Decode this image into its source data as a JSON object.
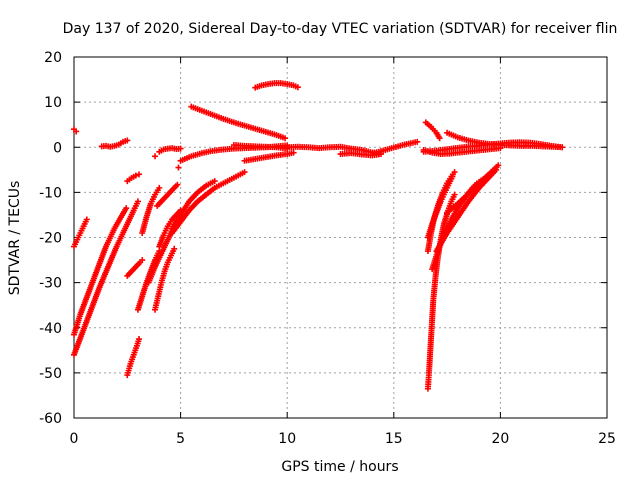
{
  "chart_data": {
    "type": "scatter",
    "title": "Day 137 of 2020, Sidereal Day-to-day VTEC variation (SDTVAR) for receiver flin",
    "xlabel": "GPS time / hours",
    "ylabel": "SDTVAR / TECUs",
    "xlim": [
      0,
      25
    ],
    "ylim": [
      -60,
      20
    ],
    "xticks": [
      0,
      5,
      10,
      15,
      20,
      25
    ],
    "yticks": [
      -60,
      -50,
      -40,
      -30,
      -20,
      -10,
      0,
      10,
      20
    ],
    "grid": true,
    "marker": "+",
    "color": "#ff0000",
    "legend": "none",
    "tracks": [
      {
        "x": [
          0.0,
          0.1
        ],
        "y": [
          4.0,
          3.5
        ]
      },
      {
        "x": [
          0.0,
          0.15,
          0.3,
          0.45,
          0.6
        ],
        "y": [
          -22,
          -20.5,
          -19,
          -17.5,
          -16
        ]
      },
      {
        "x": [
          0.0,
          0.3,
          0.7,
          1.1,
          1.5,
          1.9,
          2.2,
          2.45
        ],
        "y": [
          -41.5,
          -37,
          -32,
          -27,
          -22,
          -18,
          -15.5,
          -13.5
        ]
      },
      {
        "x": [
          0.0,
          0.4,
          0.8,
          1.2,
          1.6,
          2.0,
          2.4,
          2.8,
          3.0
        ],
        "y": [
          -46,
          -41,
          -36,
          -31,
          -26.5,
          -22,
          -18,
          -14,
          -12
        ]
      },
      {
        "x": [
          1.3,
          1.5,
          1.7,
          1.9,
          2.1,
          2.3,
          2.5
        ],
        "y": [
          0.2,
          0.3,
          0.1,
          0.3,
          0.6,
          1.2,
          1.5
        ]
      },
      {
        "x": [
          2.5,
          2.7,
          2.9,
          3.05
        ],
        "y": [
          -7.5,
          -6.8,
          -6.3,
          -6
        ]
      },
      {
        "x": [
          2.5,
          2.7,
          2.9,
          3.1,
          3.2
        ],
        "y": [
          -28.5,
          -27.5,
          -26.5,
          -25.5,
          -25
        ]
      },
      {
        "x": [
          2.5,
          2.65,
          2.8,
          2.95,
          3.05
        ],
        "y": [
          -50.5,
          -48,
          -46,
          -44,
          -42.5
        ]
      },
      {
        "x": [
          3.0,
          3.2,
          3.4,
          3.6,
          3.8,
          4.0
        ],
        "y": [
          -36,
          -33,
          -30,
          -27.5,
          -25,
          -23
        ]
      },
      {
        "x": [
          3.2,
          3.4,
          3.6,
          3.8,
          4.0
        ],
        "y": [
          -19,
          -15.5,
          -12.5,
          -10.5,
          -9
        ]
      },
      {
        "x": [
          3.5,
          3.8,
          4.1,
          4.4,
          4.7,
          5.0
        ],
        "y": [
          -30,
          -26.5,
          -23.5,
          -20.5,
          -17.5,
          -15.5
        ]
      },
      {
        "x": [
          3.8,
          3.95,
          4.1,
          4.25,
          4.4,
          4.55,
          4.7
        ],
        "y": [
          -36,
          -33,
          -30,
          -27.5,
          -25.5,
          -24,
          -22.5
        ]
      },
      {
        "x": [
          3.9,
          4.1,
          4.3,
          4.5,
          4.7,
          4.85
        ],
        "y": [
          -13,
          -12,
          -11,
          -10,
          -9,
          -8.3
        ]
      },
      {
        "x": [
          4.0,
          4.2,
          4.4,
          4.6,
          4.8,
          5.0
        ],
        "y": [
          -1.0,
          -0.5,
          -0.3,
          -0.2,
          -0.4,
          -0.3
        ]
      },
      {
        "x": [
          3.8
        ],
        "y": [
          -2.0
        ]
      },
      {
        "x": [
          4.9
        ],
        "y": [
          -4.5
        ]
      },
      {
        "x": [
          4.0,
          4.2,
          4.4,
          4.6,
          4.8,
          5.0
        ],
        "y": [
          -22,
          -19.5,
          -17.5,
          -16,
          -15,
          -14
        ]
      },
      {
        "x": [
          4.6,
          5.0,
          5.4,
          5.8,
          6.2,
          6.6,
          7.0,
          7.4,
          7.8,
          8.0
        ],
        "y": [
          -19,
          -16.5,
          -14,
          -12,
          -10.5,
          -9,
          -8,
          -7,
          -6,
          -5.5
        ]
      },
      {
        "x": [
          4.6,
          5.0,
          5.4,
          5.8,
          6.2,
          6.6
        ],
        "y": [
          -18,
          -15,
          -12,
          -10,
          -8.5,
          -7.5
        ]
      },
      {
        "x": [
          5.5,
          6.0,
          6.5,
          7.0,
          7.5,
          8.0,
          8.5,
          9.0,
          9.5,
          9.9
        ],
        "y": [
          9.0,
          8.1,
          7.2,
          6.3,
          5.5,
          4.8,
          4.1,
          3.4,
          2.7,
          2.0
        ]
      },
      {
        "x": [
          5.0,
          5.5,
          6.0,
          6.5,
          7.0,
          7.5,
          8.0,
          8.5,
          9.0,
          9.5,
          10.0
        ],
        "y": [
          -3.0,
          -2.0,
          -1.3,
          -0.8,
          -0.5,
          -0.3,
          -0.2,
          -0.1,
          0.0,
          0.2,
          0.4
        ]
      },
      {
        "x": [
          7.5,
          8.0,
          8.5,
          9.0,
          9.5,
          10.0
        ],
        "y": [
          0.5,
          0.3,
          0.2,
          0.1,
          0.0,
          -0.3
        ]
      },
      {
        "x": [
          8.0,
          8.5,
          9.0,
          9.5,
          10.0,
          10.3
        ],
        "y": [
          -3.0,
          -2.6,
          -2.2,
          -1.8,
          -1.5,
          -1.2
        ]
      },
      {
        "x": [
          8.5,
          8.8,
          9.1,
          9.4,
          9.7,
          10.0,
          10.3,
          10.5
        ],
        "y": [
          13.2,
          13.7,
          14.0,
          14.2,
          14.2,
          14.0,
          13.7,
          13.3
        ]
      },
      {
        "x": [
          10.0,
          10.5,
          11.0,
          11.5,
          12.0,
          12.5,
          13.0,
          13.5,
          14.0,
          14.3
        ],
        "y": [
          0.0,
          0.1,
          0.0,
          -0.2,
          0.0,
          0.1,
          -0.3,
          -0.6,
          -1.2,
          -1.5
        ]
      },
      {
        "x": [
          12.5,
          13.0,
          13.5,
          14.0,
          14.4
        ],
        "y": [
          -1.5,
          -1.3,
          -1.6,
          -1.8,
          -1.5
        ]
      },
      {
        "x": [
          14.0,
          14.3,
          14.6,
          14.9,
          15.2,
          15.5,
          15.8,
          16.1
        ],
        "y": [
          -1.3,
          -1.0,
          -0.6,
          -0.2,
          0.2,
          0.6,
          0.9,
          1.2
        ]
      },
      {
        "x": [
          16.4,
          16.9,
          17.4,
          17.9,
          18.4,
          18.9,
          19.4,
          19.9,
          20.4,
          20.9,
          21.4,
          21.9,
          22.4,
          22.9
        ],
        "y": [
          -1.0,
          -0.8,
          -0.5,
          -0.2,
          0.1,
          0.3,
          0.6,
          0.8,
          1.0,
          1.1,
          1.0,
          0.7,
          0.3,
          0.0
        ]
      },
      {
        "x": [
          16.4,
          16.8,
          17.2,
          17.6,
          18.0,
          18.4,
          18.8,
          19.2,
          19.6,
          20.0
        ],
        "y": [
          -0.6,
          -1.2,
          -1.5,
          -1.4,
          -1.2,
          -1.0,
          -0.8,
          -0.6,
          -0.4,
          -0.2
        ]
      },
      {
        "x": [
          16.5,
          16.75,
          17.0,
          17.15
        ],
        "y": [
          5.5,
          4.5,
          3.2,
          2.0
        ]
      },
      {
        "x": [
          17.5,
          18.0,
          18.5,
          19.0,
          19.5,
          20.0,
          20.5,
          21.0,
          21.5,
          22.0,
          22.5,
          22.9
        ],
        "y": [
          3.2,
          2.2,
          1.5,
          1.0,
          0.7,
          0.5,
          0.4,
          0.3,
          0.3,
          0.2,
          0.1,
          0.0
        ]
      },
      {
        "x": [
          16.6,
          16.65,
          16.7,
          16.75,
          16.8,
          16.85,
          16.95,
          17.05,
          17.2,
          17.35,
          17.55,
          17.7,
          17.85
        ],
        "y": [
          -53.5,
          -50,
          -46,
          -42,
          -38,
          -34,
          -29,
          -25,
          -20.5,
          -17,
          -14,
          -12,
          -10.5
        ]
      },
      {
        "x": [
          16.6,
          16.75,
          16.9,
          17.1,
          17.3,
          17.5,
          17.7,
          17.85
        ],
        "y": [
          -23,
          -19,
          -15.5,
          -12.5,
          -10,
          -8,
          -6.5,
          -5.5
        ]
      },
      {
        "x": [
          16.6,
          16.8,
          17.0,
          17.2,
          17.4,
          17.6,
          17.75
        ],
        "y": [
          -20,
          -17,
          -14.5,
          -12,
          -10,
          -8,
          -6.5
        ]
      },
      {
        "x": [
          16.8,
          17.1,
          17.4,
          17.7,
          18.0,
          18.3,
          18.6,
          18.9,
          19.2
        ],
        "y": [
          -27,
          -22.5,
          -19,
          -16,
          -13.5,
          -11.5,
          -9.5,
          -8,
          -7
        ]
      },
      {
        "x": [
          17.0,
          17.5,
          18.0,
          18.5,
          19.0,
          19.5,
          19.8
        ],
        "y": [
          -23,
          -19,
          -15.5,
          -12,
          -9,
          -6.5,
          -5
        ]
      },
      {
        "x": [
          17.5,
          18.0,
          18.5,
          19.0,
          19.5,
          19.9
        ],
        "y": [
          -14.5,
          -12.5,
          -10.3,
          -8.0,
          -5.8,
          -4.0
        ]
      }
    ]
  }
}
